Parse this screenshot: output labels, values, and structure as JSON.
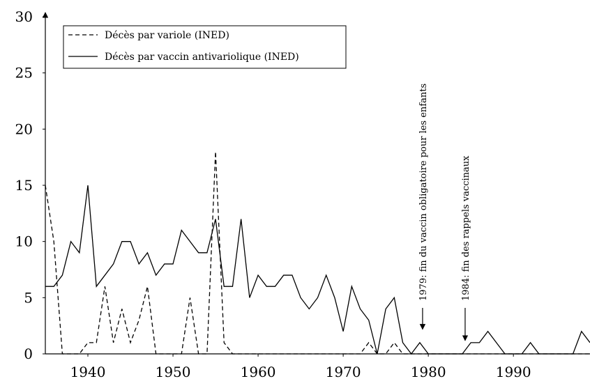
{
  "chart_data": {
    "type": "line",
    "x": [
      1935,
      1936,
      1937,
      1938,
      1939,
      1940,
      1941,
      1942,
      1943,
      1944,
      1945,
      1946,
      1947,
      1948,
      1949,
      1950,
      1951,
      1952,
      1953,
      1954,
      1955,
      1956,
      1957,
      1958,
      1959,
      1960,
      1961,
      1962,
      1963,
      1964,
      1965,
      1966,
      1967,
      1968,
      1969,
      1970,
      1971,
      1972,
      1973,
      1974,
      1975,
      1976,
      1977,
      1978,
      1979,
      1980,
      1981,
      1982,
      1983,
      1984,
      1985,
      1986,
      1987,
      1988,
      1989,
      1990,
      1991,
      1992,
      1993,
      1994,
      1995,
      1996,
      1997,
      1998,
      1999
    ],
    "series": [
      {
        "name": "Décès par variole (INED)",
        "color": "#000000",
        "dash": true,
        "values": [
          15,
          10,
          0,
          0,
          0,
          1,
          1,
          6,
          1,
          4,
          1,
          3,
          6,
          0,
          0,
          0,
          0,
          5,
          0,
          0,
          18,
          1,
          0,
          0,
          0,
          0,
          0,
          0,
          0,
          0,
          0,
          0,
          0,
          0,
          0,
          0,
          0,
          0,
          1,
          0,
          0,
          1,
          0,
          0,
          0,
          0,
          0,
          0,
          0,
          0,
          0,
          0,
          0,
          0,
          0,
          0,
          0,
          0,
          0,
          0,
          0,
          0,
          0,
          0,
          0
        ]
      },
      {
        "name": "Décès par vaccin antivariolique (INED)",
        "color": "#000000",
        "dash": false,
        "values": [
          6,
          6,
          7,
          10,
          9,
          15,
          6,
          7,
          8,
          10,
          10,
          8,
          9,
          7,
          8,
          8,
          11,
          10,
          9,
          9,
          12,
          6,
          6,
          12,
          5,
          7,
          6,
          6,
          7,
          7,
          5,
          4,
          5,
          7,
          5,
          2,
          6,
          4,
          3,
          0,
          4,
          5,
          1,
          0,
          1,
          0,
          0,
          0,
          0,
          0,
          1,
          1,
          2,
          1,
          0,
          0,
          0,
          1,
          0,
          0,
          0,
          0,
          0,
          2,
          1
        ]
      }
    ],
    "xlim": [
      1935,
      1999
    ],
    "ylim": [
      0,
      30
    ],
    "xticks": [
      1940,
      1950,
      1960,
      1970,
      1980,
      1990
    ],
    "yticks": [
      0,
      5,
      10,
      15,
      20,
      25,
      30
    ],
    "legend": "upper left",
    "annotations": [
      {
        "text": "1979: fin du vaccin obligatoire pour les enfants",
        "x": 1979,
        "y": 2
      },
      {
        "text": "1984: fin des rappels vaccinaux",
        "x": 1984,
        "y": 1
      }
    ]
  }
}
